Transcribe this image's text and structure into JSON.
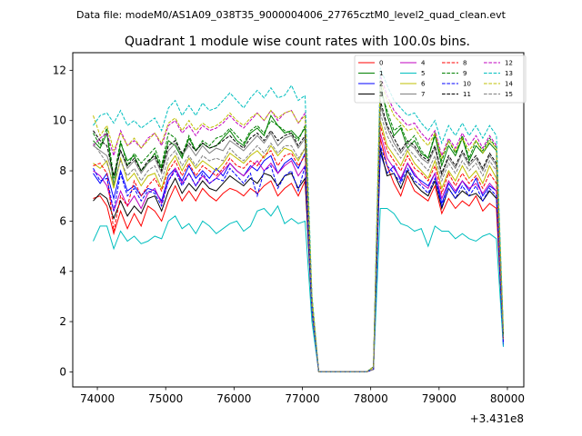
{
  "suptitle": "Data file: modeM0/AS1A09_038T35_9000004006_27765cztM0_level2_quad_clean.evt",
  "chart_data": {
    "type": "line",
    "title": "Quadrant 1 module wise count rates with 100.0s bins.",
    "xlabel": "",
    "ylabel": "",
    "x_offset_label": "+3.431e8",
    "xlim": [
      73640,
      80240
    ],
    "ylim": [
      -0.6,
      12.7
    ],
    "xticks": [
      74000,
      75000,
      76000,
      77000,
      78000,
      79000,
      80000
    ],
    "xtick_labels": [
      "74000",
      "75000",
      "76000",
      "77000",
      "78000",
      "79000",
      "80000"
    ],
    "yticks": [
      0,
      2,
      4,
      6,
      8,
      10,
      12
    ],
    "ytick_labels": [
      "0",
      "2",
      "4",
      "6",
      "8",
      "10",
      "12"
    ],
    "grid": false,
    "legend_placement": "top-right",
    "legend_columns": 4,
    "x": [
      73940,
      74040,
      74140,
      74240,
      74340,
      74440,
      74540,
      74640,
      74740,
      74840,
      74940,
      75040,
      75140,
      75240,
      75340,
      75440,
      75540,
      75640,
      75740,
      75840,
      75940,
      76040,
      76140,
      76240,
      76340,
      76440,
      76540,
      76640,
      76740,
      76840,
      76940,
      77040,
      77140,
      77240,
      77340,
      77440,
      77540,
      77640,
      77740,
      77840,
      77940,
      78040,
      78140,
      78240,
      78340,
      78440,
      78540,
      78640,
      78740,
      78840,
      78940,
      79040,
      79140,
      79240,
      79340,
      79440,
      79540,
      79640,
      79740,
      79840,
      79940
    ],
    "series": [
      {
        "name": "0",
        "color": "#ff0000",
        "dash": "solid",
        "values": [
          6.9,
          7.0,
          6.6,
          5.5,
          6.4,
          5.7,
          6.3,
          5.8,
          6.6,
          6.4,
          6.0,
          6.8,
          7.4,
          6.8,
          7.2,
          6.8,
          7.3,
          7.0,
          6.8,
          7.1,
          7.3,
          7.2,
          7.0,
          7.3,
          7.1,
          7.4,
          7.6,
          7.0,
          7.3,
          7.5,
          7.0,
          7.6,
          2.5,
          0.0,
          0.0,
          0.0,
          0.0,
          0.0,
          0.0,
          0.0,
          0.0,
          0.1,
          9.3,
          8.2,
          7.5,
          7.0,
          7.8,
          7.2,
          7.0,
          6.8,
          7.4,
          6.3,
          6.9,
          6.5,
          6.8,
          6.6,
          7.0,
          6.4,
          6.7,
          6.5,
          1.2
        ]
      },
      {
        "name": "1",
        "color": "#008000",
        "dash": "solid",
        "values": [
          9.2,
          8.9,
          9.5,
          7.4,
          9.1,
          8.4,
          8.6,
          8.0,
          8.3,
          8.7,
          8.1,
          9.2,
          9.0,
          8.5,
          9.3,
          8.8,
          9.1,
          8.9,
          9.0,
          9.3,
          9.6,
          9.2,
          9.0,
          9.5,
          9.7,
          9.4,
          10.2,
          9.8,
          9.5,
          9.6,
          9.3,
          9.7,
          2.8,
          0.0,
          0.0,
          0.0,
          0.0,
          0.0,
          0.0,
          0.0,
          0.0,
          0.2,
          11.5,
          10.2,
          9.4,
          9.7,
          8.9,
          9.2,
          8.7,
          8.5,
          9.4,
          8.2,
          9.0,
          8.6,
          9.3,
          8.4,
          9.0,
          8.7,
          9.1,
          8.8,
          1.5
        ]
      },
      {
        "name": "2",
        "color": "#0000ff",
        "dash": "solid",
        "values": [
          7.9,
          7.5,
          7.9,
          6.9,
          8.0,
          7.2,
          7.4,
          7.0,
          7.3,
          7.2,
          6.8,
          7.8,
          8.1,
          7.6,
          8.2,
          7.7,
          8.0,
          7.7,
          8.1,
          7.8,
          8.3,
          8.0,
          7.8,
          8.2,
          8.0,
          8.4,
          8.6,
          7.9,
          8.3,
          8.5,
          8.1,
          8.7,
          2.6,
          0.0,
          0.0,
          0.0,
          0.0,
          0.0,
          0.0,
          0.0,
          0.0,
          0.1,
          8.7,
          7.9,
          8.2,
          7.6,
          8.3,
          7.8,
          7.6,
          7.4,
          7.9,
          6.7,
          7.5,
          7.1,
          7.6,
          7.2,
          7.7,
          7.0,
          7.4,
          7.2,
          1.0
        ]
      },
      {
        "name": "3",
        "color": "#000000",
        "dash": "solid",
        "values": [
          6.8,
          7.1,
          6.9,
          6.1,
          6.8,
          6.2,
          6.6,
          6.3,
          6.9,
          7.0,
          6.4,
          7.2,
          7.7,
          7.1,
          7.5,
          7.2,
          7.6,
          7.3,
          7.2,
          7.5,
          7.8,
          7.6,
          7.4,
          7.7,
          7.5,
          7.9,
          7.8,
          7.4,
          7.8,
          7.9,
          7.3,
          7.7,
          2.4,
          0.0,
          0.0,
          0.0,
          0.0,
          0.0,
          0.0,
          0.0,
          0.0,
          0.1,
          8.9,
          7.8,
          7.9,
          7.3,
          8.0,
          7.5,
          7.2,
          7.0,
          7.6,
          6.5,
          7.3,
          6.9,
          7.2,
          7.0,
          7.1,
          6.8,
          7.2,
          6.9,
          1.2
        ]
      },
      {
        "name": "4",
        "color": "#bf00bf",
        "dash": "solid",
        "values": [
          8.0,
          7.8,
          7.4,
          6.4,
          7.2,
          6.6,
          7.0,
          6.5,
          7.1,
          7.3,
          6.7,
          7.6,
          8.1,
          7.5,
          7.9,
          7.4,
          7.8,
          7.5,
          7.7,
          8.0,
          8.3,
          8.0,
          7.8,
          8.1,
          8.4,
          8.0,
          8.3,
          7.9,
          8.2,
          8.4,
          7.8,
          8.2,
          2.5,
          0.0,
          0.0,
          0.0,
          0.0,
          0.0,
          0.0,
          0.0,
          0.0,
          0.1,
          9.5,
          8.5,
          8.1,
          7.7,
          8.3,
          7.9,
          7.5,
          7.3,
          7.9,
          6.9,
          7.6,
          7.2,
          7.6,
          7.3,
          7.5,
          7.1,
          7.5,
          7.2,
          1.2
        ]
      },
      {
        "name": "5",
        "color": "#00bfbf",
        "dash": "solid",
        "values": [
          5.2,
          5.8,
          5.8,
          4.9,
          5.6,
          5.2,
          5.4,
          5.1,
          5.2,
          5.4,
          5.3,
          6.0,
          6.2,
          5.7,
          5.9,
          5.5,
          6.0,
          5.8,
          5.5,
          5.7,
          5.9,
          6.0,
          5.6,
          5.8,
          6.4,
          6.5,
          6.2,
          6.6,
          5.9,
          6.1,
          5.9,
          6.0,
          2.0,
          0.0,
          0.0,
          0.0,
          0.0,
          0.0,
          0.0,
          0.0,
          0.0,
          0.1,
          6.5,
          6.5,
          6.3,
          5.9,
          5.8,
          5.6,
          5.7,
          5.0,
          5.8,
          5.6,
          5.6,
          5.3,
          5.5,
          5.3,
          5.2,
          5.4,
          5.5,
          5.3,
          1.0
        ]
      },
      {
        "name": "6",
        "color": "#bfbf00",
        "dash": "solid",
        "values": [
          8.3,
          8.1,
          8.4,
          7.3,
          8.5,
          7.6,
          7.9,
          7.4,
          7.8,
          7.9,
          7.3,
          8.2,
          8.6,
          8.0,
          8.5,
          8.1,
          8.4,
          8.2,
          8.0,
          8.3,
          8.7,
          8.5,
          8.3,
          8.6,
          8.8,
          8.5,
          9.0,
          8.6,
          8.9,
          8.8,
          8.4,
          8.9,
          2.6,
          0.0,
          0.0,
          0.0,
          0.0,
          0.0,
          0.0,
          0.0,
          0.0,
          0.1,
          10.0,
          9.0,
          8.6,
          8.2,
          8.8,
          8.3,
          8.0,
          7.7,
          8.4,
          7.3,
          8.0,
          7.6,
          8.2,
          7.7,
          8.0,
          7.5,
          8.2,
          7.7,
          1.3
        ]
      },
      {
        "name": "7",
        "color": "#808080",
        "dash": "solid",
        "values": [
          9.0,
          8.8,
          8.6,
          7.8,
          8.8,
          8.1,
          8.4,
          7.9,
          8.3,
          8.5,
          7.9,
          8.8,
          9.1,
          8.6,
          9.0,
          8.6,
          9.0,
          8.7,
          8.9,
          8.8,
          9.2,
          9.0,
          8.8,
          9.1,
          9.4,
          9.1,
          9.5,
          9.0,
          9.3,
          9.4,
          8.9,
          9.3,
          2.7,
          0.0,
          0.0,
          0.0,
          0.0,
          0.0,
          0.0,
          0.0,
          0.0,
          0.1,
          10.6,
          9.7,
          9.1,
          8.7,
          9.1,
          8.9,
          8.5,
          8.3,
          8.9,
          7.8,
          8.5,
          8.1,
          8.7,
          8.2,
          8.5,
          8.0,
          8.6,
          8.2,
          1.3
        ]
      },
      {
        "name": "8",
        "color": "#ff0000",
        "dash": "dashed",
        "values": [
          8.2,
          8.3,
          7.9,
          5.6,
          7.0,
          6.6,
          7.6,
          7.0,
          7.4,
          7.7,
          7.2,
          8.0,
          8.4,
          7.8,
          8.3,
          7.8,
          8.2,
          8.0,
          7.8,
          8.1,
          8.5,
          8.2,
          8.1,
          8.4,
          8.2,
          8.6,
          8.8,
          8.2,
          8.6,
          8.7,
          8.2,
          8.6,
          2.6,
          0.0,
          0.0,
          0.0,
          0.0,
          0.0,
          0.0,
          0.0,
          0.0,
          0.1,
          9.8,
          8.8,
          8.4,
          8.0,
          8.6,
          8.1,
          7.9,
          7.6,
          8.2,
          7.1,
          7.9,
          7.4,
          7.9,
          7.5,
          7.8,
          7.3,
          7.9,
          7.5,
          1.3
        ]
      },
      {
        "name": "9",
        "color": "#008000",
        "dash": "dashed",
        "values": [
          9.5,
          9.0,
          9.7,
          7.7,
          9.2,
          8.2,
          8.7,
          8.3,
          8.6,
          8.9,
          8.2,
          9.5,
          9.3,
          8.6,
          9.4,
          8.8,
          9.2,
          9.0,
          9.3,
          9.4,
          9.7,
          9.4,
          9.1,
          9.6,
          9.8,
          9.5,
          10.0,
          9.8,
          9.6,
          9.5,
          9.2,
          9.8,
          2.8,
          0.0,
          0.0,
          0.0,
          0.0,
          0.0,
          0.0,
          0.0,
          0.0,
          0.2,
          11.2,
          10.4,
          9.6,
          9.8,
          9.1,
          9.4,
          8.8,
          8.5,
          9.5,
          8.4,
          9.2,
          8.7,
          9.4,
          8.5,
          9.2,
          8.8,
          9.3,
          8.9,
          1.5
        ]
      },
      {
        "name": "10",
        "color": "#0000ff",
        "dash": "dashed",
        "values": [
          8.1,
          7.6,
          7.7,
          6.4,
          7.9,
          7.0,
          7.3,
          6.8,
          7.2,
          7.1,
          6.6,
          7.6,
          8.0,
          7.4,
          7.9,
          7.4,
          7.9,
          7.5,
          7.7,
          7.6,
          8.1,
          7.8,
          7.5,
          7.9,
          7.0,
          8.0,
          8.2,
          7.3,
          7.8,
          8.0,
          7.2,
          8.2,
          2.5,
          0.0,
          0.0,
          0.0,
          0.0,
          0.0,
          0.0,
          0.0,
          0.0,
          0.1,
          9.0,
          8.2,
          7.9,
          7.5,
          8.1,
          7.6,
          7.4,
          7.1,
          7.7,
          6.6,
          7.3,
          6.9,
          7.4,
          7.0,
          7.4,
          6.8,
          7.3,
          7.0,
          1.1
        ]
      },
      {
        "name": "11",
        "color": "#000000",
        "dash": "dashed",
        "values": [
          9.6,
          9.2,
          9.0,
          7.8,
          8.8,
          8.2,
          8.5,
          8.0,
          8.4,
          8.6,
          8.0,
          9.0,
          9.2,
          8.7,
          9.1,
          8.8,
          9.1,
          8.9,
          9.0,
          9.2,
          9.4,
          9.1,
          8.9,
          9.3,
          9.5,
          9.2,
          9.6,
          9.2,
          9.4,
          9.5,
          9.0,
          9.4,
          2.7,
          0.0,
          0.0,
          0.0,
          0.0,
          0.0,
          0.0,
          0.0,
          0.0,
          0.2,
          10.8,
          9.8,
          9.3,
          8.8,
          9.2,
          9.0,
          8.6,
          8.4,
          9.0,
          7.9,
          8.6,
          8.2,
          8.8,
          8.3,
          8.6,
          8.1,
          8.7,
          8.3,
          1.4
        ]
      },
      {
        "name": "12",
        "color": "#bf00bf",
        "dash": "dashed",
        "values": [
          9.0,
          9.3,
          9.5,
          8.6,
          9.6,
          9.0,
          9.2,
          8.9,
          9.3,
          9.5,
          9.0,
          9.8,
          10.0,
          9.5,
          9.8,
          9.4,
          9.8,
          9.6,
          9.7,
          9.9,
          10.2,
          9.9,
          9.7,
          10.0,
          10.3,
          10.0,
          10.4,
          10.0,
          10.3,
          10.4,
          9.9,
          10.3,
          3.0,
          0.0,
          0.0,
          0.0,
          0.0,
          0.0,
          0.0,
          0.0,
          0.0,
          0.2,
          11.8,
          11.0,
          10.4,
          10.1,
          9.8,
          9.9,
          9.5,
          9.2,
          9.6,
          8.6,
          9.3,
          8.9,
          9.5,
          9.0,
          9.4,
          8.9,
          9.4,
          9.0,
          1.6
        ]
      },
      {
        "name": "13",
        "color": "#00bfbf",
        "dash": "dashed",
        "values": [
          9.8,
          10.2,
          10.3,
          9.9,
          10.4,
          9.8,
          10.0,
          9.7,
          9.9,
          10.1,
          9.6,
          10.5,
          10.8,
          10.2,
          10.6,
          10.2,
          10.7,
          10.4,
          10.5,
          10.8,
          11.1,
          10.8,
          10.5,
          10.9,
          11.2,
          10.9,
          11.3,
          10.9,
          11.0,
          11.4,
          10.8,
          11.0,
          3.1,
          0.0,
          0.0,
          0.0,
          0.0,
          0.0,
          0.0,
          0.0,
          0.0,
          0.2,
          12.1,
          11.4,
          10.8,
          10.5,
          10.2,
          10.3,
          9.9,
          9.6,
          10.0,
          9.1,
          9.8,
          9.4,
          9.9,
          9.4,
          9.8,
          9.3,
          9.8,
          9.4,
          1.7
        ]
      },
      {
        "name": "14",
        "color": "#bfbf00",
        "dash": "dashed",
        "values": [
          10.2,
          9.4,
          9.8,
          8.8,
          9.5,
          9.0,
          9.3,
          8.9,
          9.2,
          9.5,
          9.1,
          9.9,
          10.1,
          9.6,
          10.0,
          9.6,
          9.9,
          9.7,
          9.8,
          10.0,
          10.3,
          10.0,
          9.8,
          10.1,
          10.3,
          10.0,
          10.4,
          10.1,
          10.3,
          10.4,
          9.9,
          10.2,
          3.0,
          0.0,
          0.0,
          0.0,
          0.0,
          0.0,
          0.0,
          0.0,
          0.0,
          0.2,
          11.6,
          10.8,
          10.2,
          9.9,
          9.6,
          9.7,
          9.3,
          9.0,
          9.5,
          8.5,
          9.2,
          8.8,
          9.3,
          8.8,
          9.2,
          8.7,
          9.2,
          8.9,
          1.6
        ]
      },
      {
        "name": "15",
        "color": "#808080",
        "dash": "dashed",
        "values": [
          9.1,
          8.7,
          8.3,
          7.5,
          8.4,
          7.8,
          8.1,
          7.6,
          8.0,
          8.2,
          7.6,
          8.5,
          8.8,
          8.2,
          8.6,
          8.2,
          8.6,
          8.4,
          8.5,
          8.4,
          8.9,
          8.6,
          8.4,
          8.7,
          9.0,
          8.7,
          9.1,
          8.7,
          9.0,
          9.0,
          8.5,
          8.9,
          2.6,
          0.0,
          0.0,
          0.0,
          0.0,
          0.0,
          0.0,
          0.0,
          0.0,
          0.1,
          10.3,
          9.4,
          8.9,
          8.5,
          8.9,
          8.6,
          8.3,
          8.0,
          8.6,
          7.6,
          8.3,
          7.9,
          8.4,
          8.0,
          8.3,
          7.8,
          8.4,
          8.0,
          1.3
        ]
      }
    ]
  }
}
